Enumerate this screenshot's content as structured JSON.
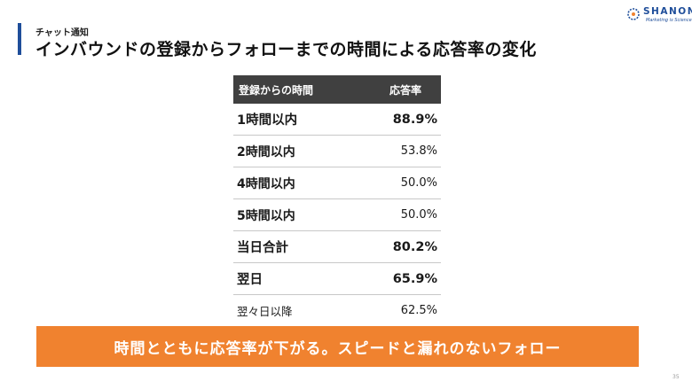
{
  "header": {
    "category": "チャット通知",
    "title": "インバウンドの登録からフォローまでの時間による応答率の変化"
  },
  "logo": {
    "name": "SHANON",
    "tagline": "Marketing is Science",
    "color": "#1f4e9a"
  },
  "table": {
    "headers": [
      "登録からの時間",
      "応答率"
    ],
    "rows": [
      {
        "label": "1時間以内",
        "value": "88.9%"
      },
      {
        "label": "2時間以内",
        "value": "53.8%"
      },
      {
        "label": "4時間以内",
        "value": "50.0%"
      },
      {
        "label": "5時間以内",
        "value": "50.0%"
      },
      {
        "label": "当日合計",
        "value": "80.2%"
      },
      {
        "label": "翌日",
        "value": "65.9%"
      },
      {
        "label": "翌々日以降",
        "value": "62.5%"
      }
    ]
  },
  "banner": {
    "text": "時間とともに応答率が下がる。スピードと漏れのないフォロー",
    "color": "#f0822f"
  },
  "footer": {
    "page_number": "35"
  }
}
